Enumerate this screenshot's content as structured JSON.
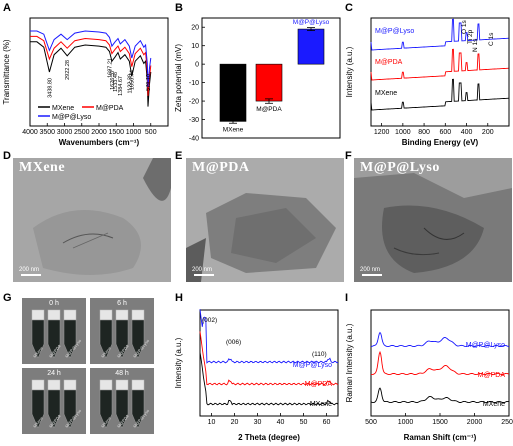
{
  "panels": {
    "A": "A",
    "B": "B",
    "C": "C",
    "D": "D",
    "E": "E",
    "F": "F",
    "G": "G",
    "H": "H",
    "I": "I"
  },
  "tem": {
    "D": {
      "label": "MXene",
      "scale": "200 nm"
    },
    "E": {
      "label": "M@PDA",
      "scale": "200 nm"
    },
    "F": {
      "label": "M@P@Lyso",
      "scale": "200 nm"
    }
  },
  "vials": {
    "times": [
      "0 h",
      "6 h",
      "24 h",
      "48 h"
    ],
    "names": [
      "MXene",
      "M@PDA",
      "M@P@Lyso"
    ]
  },
  "colors": {
    "mxene": "#000000",
    "mpda": "#ff0000",
    "mplyso": "#1a1aff"
  },
  "chart_data": [
    {
      "id": "A",
      "type": "line",
      "xlabel": "Wavenumbers (cm⁻¹)",
      "ylabel": "Transmittance (%)",
      "xlim": [
        4000,
        0
      ],
      "xticks": [
        4000,
        3500,
        3000,
        2500,
        2000,
        1500,
        1000,
        500
      ],
      "legend": [
        "MXene",
        "M@PDA",
        "M@P@Lyso"
      ],
      "annotations": [
        "3438.80",
        "2922.28",
        "1697.21",
        "1626.37",
        "1533.48",
        "1384.67",
        "1122.30",
        "1050.74",
        "579.10"
      ],
      "series": [
        {
          "name": "MXene",
          "x": [
            4000,
            3800,
            3600,
            3438,
            3300,
            3100,
            2922,
            2700,
            2400,
            2000,
            1800,
            1697,
            1626,
            1533,
            1450,
            1384,
            1250,
            1122,
            1050,
            950,
            800,
            700,
            650,
            600,
            579,
            540,
            500
          ],
          "y": [
            0.78,
            0.78,
            0.73,
            0.5,
            0.66,
            0.72,
            0.65,
            0.73,
            0.75,
            0.74,
            0.73,
            0.69,
            0.6,
            0.64,
            0.68,
            0.62,
            0.66,
            0.6,
            0.46,
            0.6,
            0.65,
            0.58,
            0.6,
            0.42,
            0.18,
            0.38,
            0.5
          ]
        },
        {
          "name": "M@PDA",
          "x": [
            4000,
            3800,
            3600,
            3438,
            3300,
            3100,
            2922,
            2700,
            2400,
            2000,
            1800,
            1697,
            1626,
            1533,
            1450,
            1384,
            1250,
            1122,
            1050,
            950,
            800,
            700,
            650,
            600,
            579,
            540,
            500
          ],
          "y": [
            0.83,
            0.83,
            0.79,
            0.62,
            0.72,
            0.78,
            0.72,
            0.79,
            0.81,
            0.8,
            0.79,
            0.75,
            0.67,
            0.71,
            0.74,
            0.69,
            0.73,
            0.67,
            0.55,
            0.67,
            0.72,
            0.66,
            0.68,
            0.5,
            0.28,
            0.45,
            0.56
          ]
        },
        {
          "name": "M@P@Lyso",
          "x": [
            4000,
            3800,
            3600,
            3438,
            3300,
            3100,
            2922,
            2700,
            2400,
            2000,
            1800,
            1697,
            1626,
            1533,
            1450,
            1384,
            1250,
            1122,
            1050,
            950,
            800,
            700,
            650,
            600,
            579,
            540,
            500
          ],
          "y": [
            0.88,
            0.88,
            0.85,
            0.7,
            0.8,
            0.85,
            0.8,
            0.86,
            0.88,
            0.87,
            0.86,
            0.82,
            0.74,
            0.78,
            0.81,
            0.76,
            0.8,
            0.74,
            0.63,
            0.74,
            0.79,
            0.73,
            0.75,
            0.58,
            0.36,
            0.53,
            0.63
          ]
        }
      ]
    },
    {
      "id": "B",
      "type": "bar",
      "ylabel": "Zeta potential (mV)",
      "ylim": [
        -40,
        25
      ],
      "yticks": [
        20,
        10,
        0,
        -10,
        -20,
        -30,
        -40
      ],
      "categories": [
        "MXene",
        "M@PDA",
        "M@P@Lyso"
      ],
      "values": [
        -31,
        -20,
        19
      ],
      "errors": [
        1,
        1.2,
        0.8
      ]
    },
    {
      "id": "C",
      "type": "line",
      "xlabel": "Binding Energy (eV)",
      "ylabel": "Intensity (a.u.)",
      "xlim": [
        1300,
        0
      ],
      "xticks": [
        1200,
        1000,
        800,
        600,
        400,
        200
      ],
      "peak_labels": [
        "O 1s",
        "Ti 2p",
        "N 1s",
        "C 1s"
      ],
      "series_labels": [
        "M@P@Lyso",
        "M@PDA",
        "MXene"
      ]
    },
    {
      "id": "H",
      "type": "line",
      "xlabel": "2 Theta (degree)",
      "ylabel": "Intensity (a.u.)",
      "xlim": [
        5,
        65
      ],
      "xticks": [
        10,
        20,
        30,
        40,
        50,
        60
      ],
      "peak_labels": [
        "(002)",
        "(006)",
        "(110)"
      ],
      "series_labels": [
        "M@P@Lyso",
        "M@PDA",
        "MXene"
      ]
    },
    {
      "id": "I",
      "type": "line",
      "xlabel": "Raman Shift (cm⁻¹)",
      "ylabel": "Raman Intensity (a.u.)",
      "xlim": [
        500,
        2500
      ],
      "xticks": [
        500,
        1000,
        1500,
        2000,
        2500
      ],
      "series_labels": [
        "M@P@Lyso",
        "M@PDA",
        "MXene"
      ]
    }
  ]
}
